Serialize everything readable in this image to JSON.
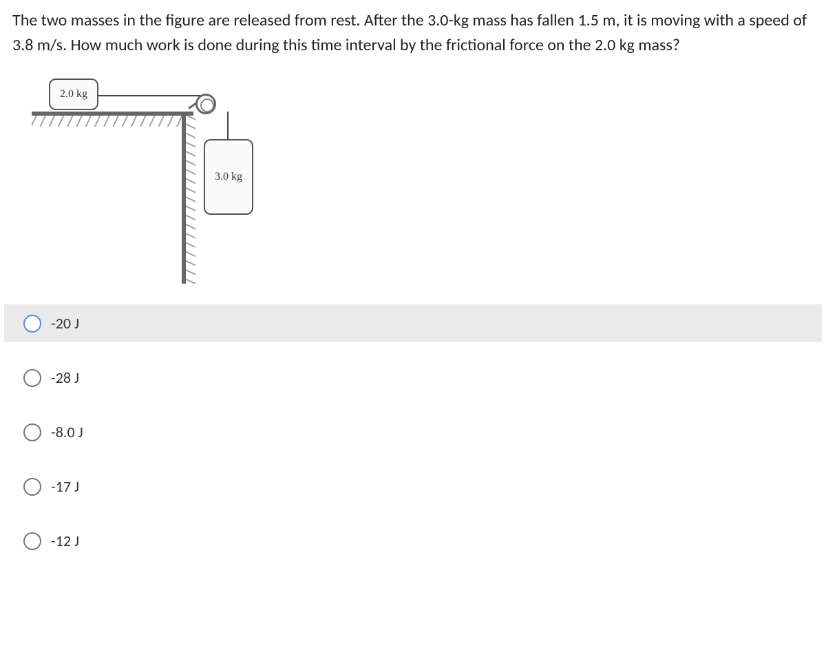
{
  "question": {
    "text": "The two masses in the figure are released from rest. After the 3.0-kg mass has fallen 1.5 m, it is moving with a speed of 3.8 m/s. How much work is done during this time interval by the frictional force on the 2.0 kg mass?"
  },
  "figure": {
    "mass_a_label": "2.0 kg",
    "mass_b_label": "3.0 kg",
    "colors": {
      "line": "#666666",
      "box_border": "#555555",
      "box_fill": "#fafafa",
      "string": "#444444"
    }
  },
  "options": [
    {
      "label": "-20 J",
      "highlighted": true
    },
    {
      "label": "-28 J",
      "highlighted": false
    },
    {
      "label": "-8.0 J",
      "highlighted": false
    },
    {
      "label": "-17 J",
      "highlighted": false
    },
    {
      "label": "-12 J",
      "highlighted": false
    }
  ]
}
